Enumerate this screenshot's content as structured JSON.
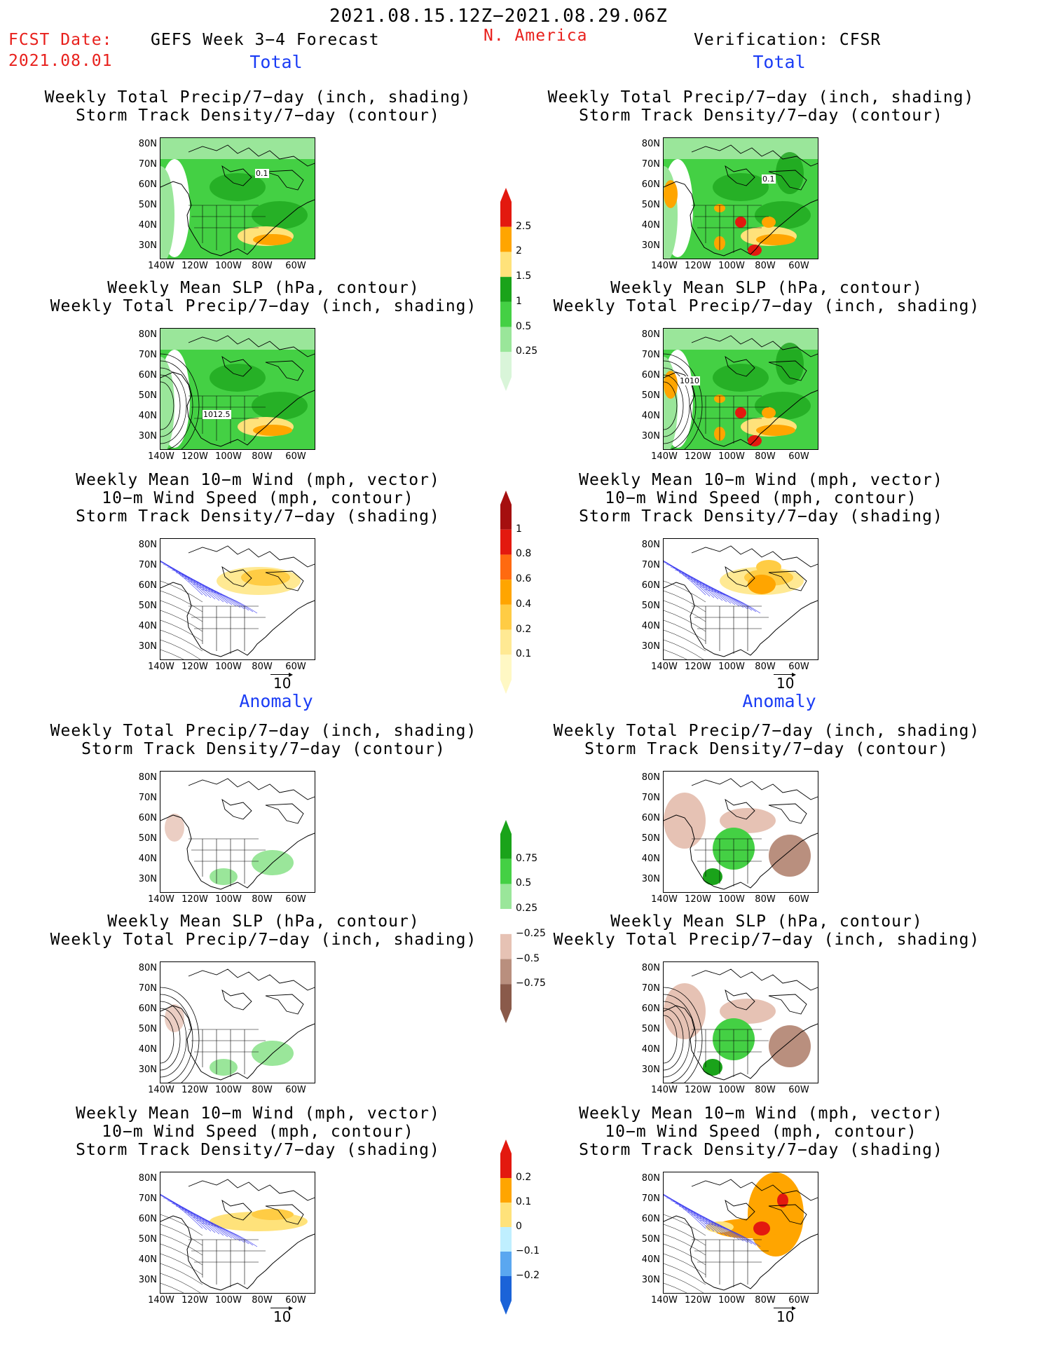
{
  "header": {
    "date_range": "2021.08.15.12Z−2021.08.29.06Z",
    "fcst_date_label": "FCST Date:",
    "fcst_date_value": "2021.08.01",
    "forecast_title": "GEFS Week 3−4 Forecast",
    "region": "N. America",
    "verification": "Verification: CFSR"
  },
  "sections": {
    "total": "Total",
    "anomaly": "Anomaly"
  },
  "panel_titles": {
    "precip_storm": [
      "Weekly Total Precip/7−day (inch, shading)",
      "Storm Track Density/7−day (contour)"
    ],
    "slp_precip": [
      "Weekly Mean SLP (hPa, contour)",
      "Weekly Total Precip/7−day (inch, shading)"
    ],
    "wind_storm": [
      "Weekly Mean 10−m Wind (mph, vector)",
      "10−m Wind Speed (mph, contour)",
      "Storm Track Density/7−day (shading)"
    ]
  },
  "axes": {
    "lat_labels": [
      "80N",
      "70N",
      "60N",
      "50N",
      "40N",
      "30N"
    ],
    "lon_labels": [
      "140W",
      "120W",
      "100W",
      "80W",
      "60W"
    ],
    "vector_ref": "10"
  },
  "contour_labels": {
    "total_precip_fcst": "0.1",
    "total_precip_obs": "0.1",
    "total_slp_fcst": "1012.5",
    "total_slp_obs": "1010"
  },
  "colorbars": {
    "total_precip": {
      "labels": [
        "2.5",
        "2",
        "1.5",
        "1",
        "0.5",
        "0.25"
      ],
      "colors": [
        "#e3190f",
        "#ffa500",
        "#ffe27a",
        "#1aa31a",
        "#44d044",
        "#9ae69a",
        "#d9f5d9"
      ]
    },
    "total_storm": {
      "labels": [
        "1",
        "0.8",
        "0.6",
        "0.4",
        "0.2",
        "0.1"
      ],
      "colors": [
        "#a50f0f",
        "#e3190f",
        "#ff6a10",
        "#ffa500",
        "#ffcc44",
        "#ffe993",
        "#fff8c4"
      ]
    },
    "anom_precip": {
      "labels": [
        "0.75",
        "0.5",
        "0.25",
        "−0.25",
        "−0.5",
        "−0.75"
      ],
      "colors": [
        "#1aa31a",
        "#44d044",
        "#9ae69a",
        "#ffffff",
        "#e6c2b4",
        "#b98f7e",
        "#8a5a4a"
      ]
    },
    "anom_storm": {
      "labels": [
        "0.2",
        "0.1",
        "0",
        "−0.1",
        "−0.2"
      ],
      "colors": [
        "#e3190f",
        "#ffa500",
        "#ffe27a",
        "#bfefff",
        "#5aa7f0",
        "#1b63d8"
      ]
    }
  }
}
